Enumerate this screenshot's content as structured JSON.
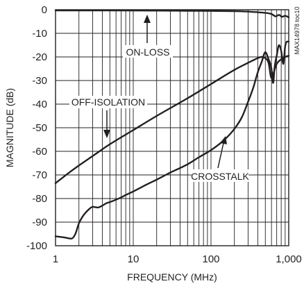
{
  "chart_data": {
    "type": "line",
    "title": "",
    "xlabel": "FREQUENCY (MHz)",
    "ylabel": "MAGNITUDE (dB)",
    "x_scale": "log",
    "xlim": [
      1,
      1000
    ],
    "ylim": [
      -100,
      0
    ],
    "grid": true,
    "x_tick_labels": [
      {
        "value": 1,
        "label": "1"
      },
      {
        "value": 10,
        "label": "10"
      },
      {
        "value": 100,
        "label": "100"
      },
      {
        "value": 1000,
        "label": "1,000"
      }
    ],
    "y_tick_labels": [
      {
        "value": 0,
        "label": "0"
      },
      {
        "value": -10,
        "label": "-10"
      },
      {
        "value": -20,
        "label": "-20"
      },
      {
        "value": -30,
        "label": "-30"
      },
      {
        "value": -40,
        "label": "-40"
      },
      {
        "value": -50,
        "label": "-50"
      },
      {
        "value": -60,
        "label": "-60"
      },
      {
        "value": -70,
        "label": "-70"
      },
      {
        "value": -80,
        "label": "-80"
      },
      {
        "value": -90,
        "label": "-90"
      },
      {
        "value": -100,
        "label": "-100"
      }
    ],
    "series": [
      {
        "name": "ON-LOSS",
        "x": [
          1,
          5,
          20,
          100,
          200,
          300,
          450,
          600,
          680,
          750,
          820,
          900,
          1000
        ],
        "y": [
          -0.3,
          -0.3,
          -0.4,
          -0.5,
          -0.6,
          -0.8,
          -1.2,
          -1.8,
          -2.8,
          -2.2,
          -3.0,
          -2.6,
          -3.2
        ]
      },
      {
        "name": "OFF-ISOLATION",
        "x": [
          1,
          1.5,
          2,
          3,
          5,
          10,
          20,
          50,
          100,
          200,
          300,
          400,
          450,
          500,
          550,
          600,
          650,
          700,
          800,
          900,
          1000
        ],
        "y": [
          -73.5,
          -69,
          -66,
          -62,
          -57,
          -51,
          -45,
          -37.5,
          -31.5,
          -25.5,
          -22.5,
          -20.5,
          -20,
          -20.5,
          -22.5,
          -29,
          -26,
          -23,
          -21,
          -20,
          -19.5
        ]
      },
      {
        "name": "CROSSTALK",
        "x": [
          1,
          1.3,
          1.6,
          1.8,
          2,
          2.3,
          2.7,
          3,
          3.5,
          4,
          4.5,
          5,
          6,
          7,
          8,
          10,
          15,
          20,
          30,
          50,
          70,
          100,
          150,
          200,
          250,
          300,
          350,
          400,
          450,
          500,
          550,
          600,
          630,
          660,
          700,
          750,
          800,
          850,
          900,
          950,
          1000
        ],
        "y": [
          -96,
          -96.5,
          -97,
          -95,
          -90.5,
          -87,
          -84.5,
          -83.5,
          -83.8,
          -83,
          -82,
          -81.5,
          -80.5,
          -79.5,
          -78.5,
          -77,
          -74,
          -72,
          -69,
          -65.5,
          -62.5,
          -59.5,
          -55,
          -50.5,
          -45.5,
          -39,
          -33,
          -26.5,
          -22,
          -18,
          -21,
          -25,
          -31,
          -24,
          -19.5,
          -15,
          -17.5,
          -23,
          -15.5,
          -13.5,
          -13.5
        ]
      }
    ],
    "annotations": [
      {
        "text": "ON-LOSS",
        "points_to": "ON-LOSS"
      },
      {
        "text": "OFF-ISOLATION",
        "points_to": "OFF-ISOLATION"
      },
      {
        "text": "CROSSTALK",
        "points_to": "CROSSTALK"
      }
    ],
    "side_label": "MAX14978 toc10"
  }
}
